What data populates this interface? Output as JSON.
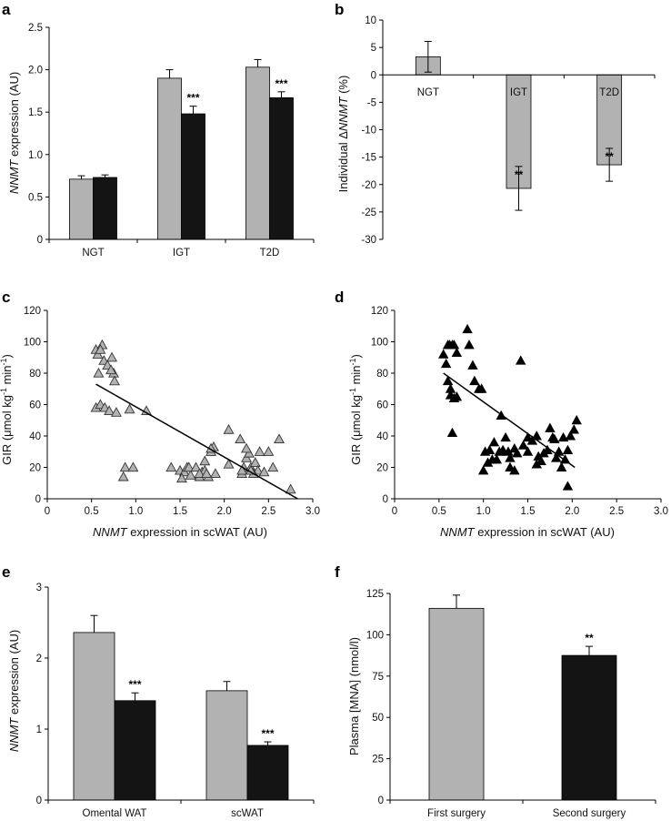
{
  "colors": {
    "grey": "#b2b2b2",
    "black": "#141414"
  },
  "chart_data": [
    {
      "panel": "a",
      "type": "bar",
      "ylabel_italic": "NNMT",
      "ylabel_rest": " expression (AU)",
      "categories": [
        "NGT",
        "IGT",
        "T2D"
      ],
      "ylim": [
        0,
        2.5
      ],
      "yticks": [
        "0",
        "0.5",
        "1.0",
        "1.5",
        "2.0",
        "2.5"
      ],
      "ytick_values": [
        0,
        0.5,
        1.0,
        1.5,
        2.0,
        2.5
      ],
      "series": [
        {
          "name": "grey",
          "values": [
            0.71,
            1.9,
            2.03
          ],
          "errors": [
            0.04,
            0.1,
            0.09
          ]
        },
        {
          "name": "black",
          "values": [
            0.73,
            1.48,
            1.67
          ],
          "errors": [
            0.03,
            0.09,
            0.07
          ]
        }
      ],
      "annotations": [
        "",
        "***",
        "***"
      ]
    },
    {
      "panel": "b",
      "type": "bar",
      "ylabel_prefix": "Individual Δ",
      "ylabel_italic": "NNMT",
      "ylabel_rest": " (%)",
      "categories": [
        "NGT",
        "IGT",
        "T2D"
      ],
      "ylim": [
        -30,
        10
      ],
      "yticks": [
        "10",
        "5",
        "0",
        "-5",
        "-10",
        "-15",
        "-20",
        "-25",
        "-30"
      ],
      "ytick_values": [
        10,
        5,
        0,
        -5,
        -10,
        -15,
        -20,
        -25,
        -30
      ],
      "values": [
        3.3,
        -20.7,
        -16.4
      ],
      "errors": [
        2.8,
        4.0,
        3.0
      ],
      "annotations": [
        "",
        "**",
        "**"
      ]
    },
    {
      "panel": "c",
      "type": "scatter",
      "marker": "open-triangle",
      "xlabel_italic": "NNMT",
      "xlabel_rest": " expression in scWAT (AU)",
      "ylabel_main": "GIR (μmol kg",
      "ylabel_sup1": "-1",
      "ylabel_mid": " min",
      "ylabel_sup2": "-1",
      "ylabel_end": ")",
      "xlim": [
        0,
        3.0
      ],
      "ylim": [
        0,
        120
      ],
      "xticks": [
        "0",
        "0.5",
        "1.0",
        "1.5",
        "2.0",
        "2.5",
        "3.0"
      ],
      "xtick_values": [
        0,
        0.5,
        1.0,
        1.5,
        2.0,
        2.5,
        3.0
      ],
      "yticks": [
        "0",
        "20",
        "40",
        "60",
        "80",
        "100",
        "120"
      ],
      "ytick_values": [
        0,
        20,
        40,
        60,
        80,
        100,
        120
      ],
      "x": [
        0.55,
        0.57,
        0.62,
        0.6,
        0.64,
        0.58,
        0.68,
        0.73,
        0.75,
        0.72,
        0.76,
        0.55,
        0.6,
        0.65,
        0.7,
        0.78,
        0.88,
        0.97,
        1.12,
        0.93,
        0.86,
        1.4,
        1.5,
        1.55,
        1.58,
        1.62,
        1.52,
        1.6,
        1.68,
        1.72,
        1.75,
        1.78,
        1.82,
        1.85,
        1.88,
        1.72,
        1.78,
        1.8,
        1.9,
        1.85,
        2.05,
        2.2,
        2.22,
        2.25,
        2.28,
        2.3,
        2.35,
        2.38,
        2.4,
        2.18,
        2.25,
        2.33,
        2.45,
        2.5,
        2.55,
        2.62,
        2.75,
        2.05,
        2.3,
        2.2
      ],
      "y": [
        95,
        92,
        98,
        95,
        88,
        80,
        85,
        90,
        80,
        82,
        75,
        58,
        60,
        58,
        56,
        55,
        20,
        20,
        56,
        57,
        14,
        20,
        18,
        17,
        20,
        15,
        13,
        20,
        20,
        14,
        17,
        18,
        14,
        30,
        33,
        16,
        24,
        16,
        16,
        32,
        44,
        16,
        20,
        26,
        29,
        20,
        23,
        18,
        30,
        38,
        32,
        16,
        17,
        30,
        20,
        38,
        6,
        22,
        18,
        18
      ],
      "fit": {
        "x0": 0.55,
        "y0": 73,
        "x1": 2.83,
        "y1": 0
      }
    },
    {
      "panel": "d",
      "type": "scatter",
      "marker": "filled-triangle",
      "xlabel_italic": "NNMT",
      "xlabel_rest": " expression in scWAT (AU)",
      "ylabel_main": "GIR (μmol kg",
      "ylabel_sup1": "-1",
      "ylabel_mid": " min",
      "ylabel_sup2": "-1",
      "ylabel_end": ")",
      "xlim": [
        0,
        3.0
      ],
      "ylim": [
        0,
        120
      ],
      "xticks": [
        "0",
        "0.5",
        "1.0",
        "1.5",
        "2.0",
        "2.5",
        "3.0"
      ],
      "xtick_values": [
        0,
        0.5,
        1.0,
        1.5,
        2.0,
        2.5,
        3.0
      ],
      "yticks": [
        "0",
        "20",
        "40",
        "60",
        "80",
        "100",
        "120"
      ],
      "ytick_values": [
        0,
        20,
        40,
        60,
        80,
        100,
        120
      ],
      "x": [
        0.6,
        0.62,
        0.65,
        0.67,
        0.7,
        0.55,
        0.58,
        0.6,
        0.63,
        0.67,
        0.82,
        0.84,
        0.88,
        0.9,
        0.95,
        0.98,
        1.02,
        1.07,
        1.12,
        1.18,
        1.22,
        1.28,
        1.35,
        1.42,
        1.2,
        1.25,
        0.65,
        1.05,
        1.1,
        1.15,
        1.3,
        1.38,
        1.45,
        1.5,
        1.55,
        1.62,
        1.68,
        1.72,
        1.78,
        1.82,
        1.9,
        1.95,
        1.98,
        2.02,
        2.05,
        1.6,
        1.65,
        1.75,
        1.85,
        1.92,
        1.3,
        1.5,
        1.35,
        1.8,
        1.88,
        0.7,
        0.63,
        1.0,
        1.6,
        1.95
      ],
      "y": [
        98,
        98,
        98,
        98,
        93,
        92,
        86,
        75,
        66,
        64,
        108,
        98,
        85,
        75,
        70,
        70,
        30,
        31,
        36,
        30,
        31,
        30,
        32,
        88,
        53,
        39,
        42,
        23,
        25,
        25,
        26,
        29,
        34,
        30,
        37,
        27,
        29,
        31,
        39,
        26,
        39,
        31,
        40,
        44,
        50,
        40,
        24,
        45,
        30,
        25,
        20,
        39,
        18,
        38,
        20,
        65,
        70,
        18,
        22,
        8
      ],
      "fit": {
        "x0": 0.55,
        "y0": 80,
        "x1": 2.03,
        "y1": 20
      }
    },
    {
      "panel": "e",
      "type": "bar",
      "ylabel_italic": "NNMT",
      "ylabel_rest": " expression (AU)",
      "categories": [
        "Omental WAT",
        "scWAT"
      ],
      "ylim": [
        0,
        3
      ],
      "yticks": [
        "0",
        "1",
        "2",
        "3"
      ],
      "ytick_values": [
        0,
        1,
        2,
        3
      ],
      "series": [
        {
          "name": "grey",
          "values": [
            2.36,
            1.54
          ],
          "errors": [
            0.24,
            0.13
          ]
        },
        {
          "name": "black",
          "values": [
            1.4,
            0.77
          ],
          "errors": [
            0.11,
            0.05
          ]
        }
      ],
      "annotations": [
        "***",
        "***"
      ]
    },
    {
      "panel": "f",
      "type": "bar",
      "ylabel": "Plasma [MNA] (nmol/l)",
      "categories": [
        "First surgery",
        "Second surgery"
      ],
      "ylim": [
        0,
        125
      ],
      "yticks": [
        "0",
        "25",
        "50",
        "75",
        "100",
        "125"
      ],
      "ytick_values": [
        0,
        25,
        50,
        75,
        100,
        125
      ],
      "values": [
        116,
        87.5
      ],
      "errors": [
        8,
        5.5
      ],
      "annotations": [
        "",
        "**"
      ]
    }
  ]
}
